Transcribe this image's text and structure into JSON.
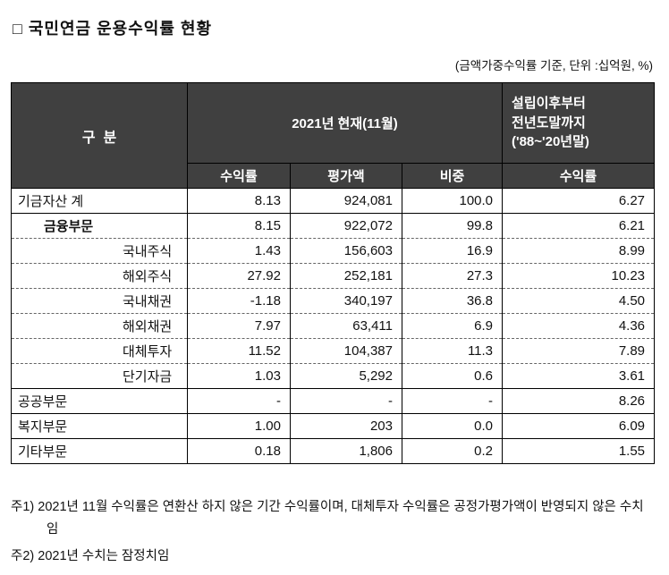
{
  "page": {
    "title": "□ 국민연금 운용수익률 현황",
    "subtitle": "(금액가중수익률 기준, 단위 :십억원, %)"
  },
  "colors": {
    "header-bg": "#404040",
    "header-fg": "#ffffff",
    "border": "#000000",
    "dashed": "#666666"
  },
  "table": {
    "header": {
      "category": "구  분",
      "current_group": "2021년 현재(11월)",
      "since_lines": [
        "설립이후부터",
        "전년도말까지",
        "('88~'20년말)"
      ],
      "sub": [
        "수익률",
        "평가액",
        "비중",
        "수익률"
      ]
    },
    "rows": [
      {
        "label": "기금자산 계",
        "indent": 0,
        "bold": false,
        "border": "solid",
        "values": [
          "8.13",
          "924,081",
          "100.0",
          "6.27"
        ]
      },
      {
        "label": "금융부문",
        "indent": 1,
        "bold": true,
        "border": "solid",
        "values": [
          "8.15",
          "922,072",
          "99.8",
          "6.21"
        ]
      },
      {
        "label": "국내주식",
        "indent": 2,
        "bold": false,
        "border": "dashed",
        "values": [
          "1.43",
          "156,603",
          "16.9",
          "8.99"
        ]
      },
      {
        "label": "해외주식",
        "indent": 2,
        "bold": false,
        "border": "dashed",
        "values": [
          "27.92",
          "252,181",
          "27.3",
          "10.23"
        ]
      },
      {
        "label": "국내채권",
        "indent": 2,
        "bold": false,
        "border": "dashed",
        "values": [
          "-1.18",
          "340,197",
          "36.8",
          "4.50"
        ]
      },
      {
        "label": "해외채권",
        "indent": 2,
        "bold": false,
        "border": "dashed",
        "values": [
          "7.97",
          "63,411",
          "6.9",
          "4.36"
        ]
      },
      {
        "label": "대체투자",
        "indent": 2,
        "bold": false,
        "border": "dashed",
        "values": [
          "11.52",
          "104,387",
          "11.3",
          "7.89"
        ]
      },
      {
        "label": "단기자금",
        "indent": 2,
        "bold": false,
        "border": "dashed",
        "values": [
          "1.03",
          "5,292",
          "0.6",
          "3.61"
        ]
      },
      {
        "label": "공공부문",
        "indent": 0,
        "bold": false,
        "border": "solid",
        "values": [
          "-",
          "-",
          "-",
          "8.26"
        ]
      },
      {
        "label": "복지부문",
        "indent": 0,
        "bold": false,
        "border": "solid",
        "values": [
          "1.00",
          "203",
          "0.0",
          "6.09"
        ]
      },
      {
        "label": "기타부문",
        "indent": 0,
        "bold": false,
        "border": "solid",
        "values": [
          "0.18",
          "1,806",
          "0.2",
          "1.55"
        ]
      }
    ]
  },
  "notes": [
    "주1) 2021년 11월 수익률은 연환산 하지 않은 기간 수익률이며, 대체투자 수익률은 공정가평가액이 반영되지 않은 수치임",
    "주2) 2021년 수치는 잠정치임"
  ]
}
